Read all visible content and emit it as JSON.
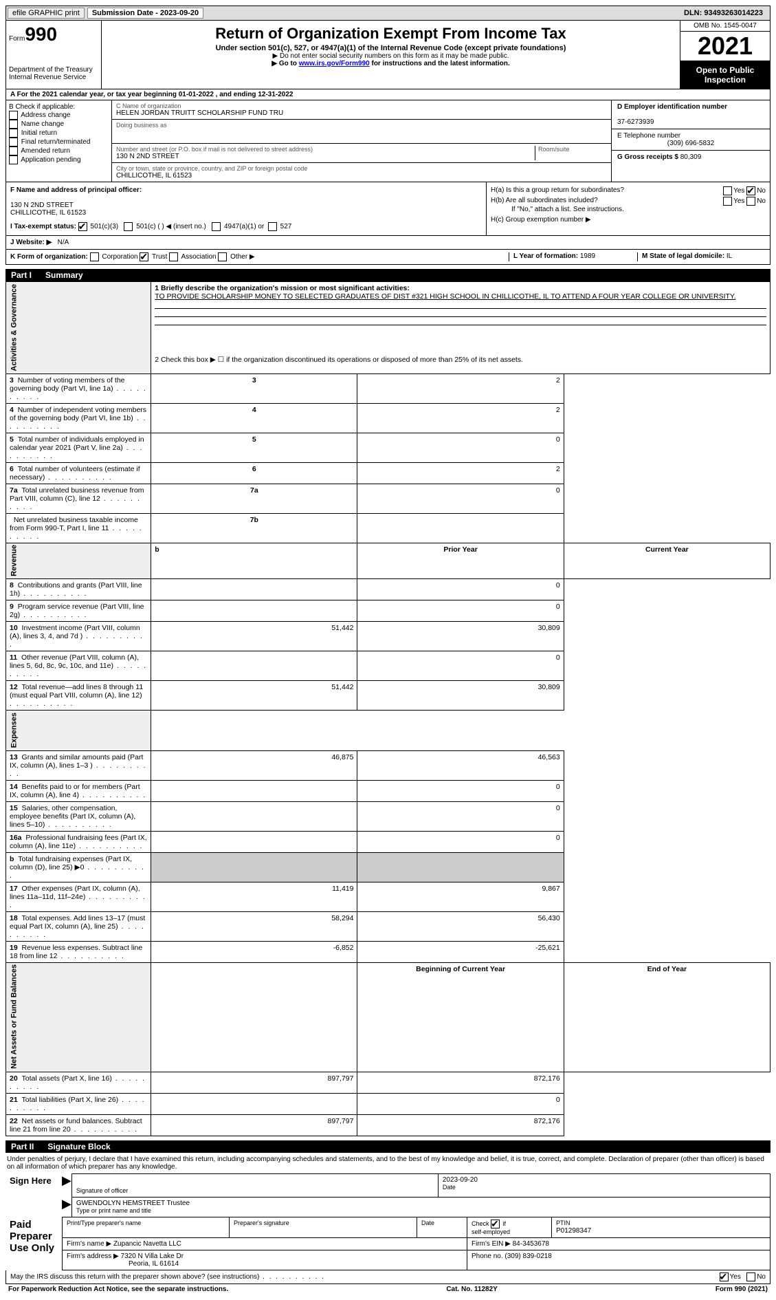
{
  "topbar": {
    "efile": "efile GRAPHIC print",
    "submission_label": "Submission Date - 2023-09-20",
    "dln": "DLN: 93493263014223"
  },
  "header": {
    "form_prefix": "Form",
    "form_number": "990",
    "dept": "Department of the Treasury",
    "irs": "Internal Revenue Service",
    "title": "Return of Organization Exempt From Income Tax",
    "subtitle": "Under section 501(c), 527, or 4947(a)(1) of the Internal Revenue Code (except private foundations)",
    "note1": "▶ Do not enter social security numbers on this form as it may be made public.",
    "note2_prefix": "▶ Go to ",
    "note2_link": "www.irs.gov/Form990",
    "note2_suffix": " for instructions and the latest information.",
    "omb": "OMB No. 1545-0047",
    "year": "2021",
    "open": "Open to Public Inspection"
  },
  "row_a": "A For the 2021 calendar year, or tax year beginning 01-01-2022   , and ending 12-31-2022",
  "col_b": {
    "label": "B Check if applicable:",
    "items": [
      "Address change",
      "Name change",
      "Initial return",
      "Final return/terminated",
      "Amended return",
      "Application pending"
    ]
  },
  "col_c": {
    "name_label": "C Name of organization",
    "name": "HELEN JORDAN TRUITT SCHOLARSHIP FUND TRU",
    "dba_label": "Doing business as",
    "addr_label": "Number and street (or P.O. box if mail is not delivered to street address)",
    "room_label": "Room/suite",
    "addr": "130 N 2ND STREET",
    "city_label": "City or town, state or province, country, and ZIP or foreign postal code",
    "city": "CHILLICOTHE, IL  61523"
  },
  "col_d": {
    "ein_label": "D Employer identification number",
    "ein": "37-6273939",
    "phone_label": "E Telephone number",
    "phone": "(309) 696-5832",
    "gross_label": "G Gross receipts $",
    "gross": "80,309"
  },
  "col_f": {
    "label": "F  Name and address of principal officer:",
    "addr1": "130 N 2ND STREET",
    "addr2": "CHILLICOTHE, IL  61523"
  },
  "col_h": {
    "ha": "H(a)  Is this a group return for subordinates?",
    "hb": "H(b)  Are all subordinates included?",
    "hb_note": "If \"No,\" attach a list. See instructions.",
    "hc": "H(c)  Group exemption number ▶"
  },
  "tax_status": {
    "label_i": "I  Tax-exempt status:",
    "opt1": "501(c)(3)",
    "opt2": "501(c) (  ) ◀ (insert no.)",
    "opt3": "4947(a)(1) or",
    "opt4": "527"
  },
  "row_j": {
    "label": "J  Website: ▶",
    "value": "N/A"
  },
  "row_k": {
    "label": "K Form of organization:",
    "opts": [
      "Corporation",
      "Trust",
      "Association",
      "Other ▶"
    ],
    "year_label": "L Year of formation:",
    "year_val": "1989",
    "state_label": "M State of legal domicile:",
    "state_val": "IL"
  },
  "part1": {
    "header_num": "Part I",
    "header_title": "Summary",
    "line1_label": "1   Briefly describe the organization's mission or most significant activities:",
    "line1_text": "TO PROVIDE SCHOLARSHIP MONEY TO SELECTED GRADUATES OF DIST #321 HIGH SCHOOL IN CHILLICOTHE, IL TO ATTEND A FOUR YEAR COLLEGE OR UNIVERSITY.",
    "line2": "2   Check this box ▶ ☐  if the organization discontinued its operations or disposed of more than 25% of its net assets.",
    "sidebar_activities": "Activities & Governance",
    "sidebar_revenue": "Revenue",
    "sidebar_expenses": "Expenses",
    "sidebar_net": "Net Assets or Fund Balances",
    "rows_gov": [
      {
        "n": "3",
        "t": "Number of voting members of the governing body (Part VI, line 1a)",
        "box": "3",
        "v": "2"
      },
      {
        "n": "4",
        "t": "Number of independent voting members of the governing body (Part VI, line 1b)",
        "box": "4",
        "v": "2"
      },
      {
        "n": "5",
        "t": "Total number of individuals employed in calendar year 2021 (Part V, line 2a)",
        "box": "5",
        "v": "0"
      },
      {
        "n": "6",
        "t": "Total number of volunteers (estimate if necessary)",
        "box": "6",
        "v": "2"
      },
      {
        "n": "7a",
        "t": "Total unrelated business revenue from Part VIII, column (C), line 12",
        "box": "7a",
        "v": "0"
      },
      {
        "n": "",
        "t": "Net unrelated business taxable income from Form 990-T, Part I, line 11",
        "box": "7b",
        "v": ""
      }
    ],
    "prior_label": "Prior Year",
    "current_label": "Current Year",
    "rows_rev": [
      {
        "n": "8",
        "t": "Contributions and grants (Part VIII, line 1h)",
        "p": "",
        "c": "0"
      },
      {
        "n": "9",
        "t": "Program service revenue (Part VIII, line 2g)",
        "p": "",
        "c": "0"
      },
      {
        "n": "10",
        "t": "Investment income (Part VIII, column (A), lines 3, 4, and 7d )",
        "p": "51,442",
        "c": "30,809"
      },
      {
        "n": "11",
        "t": "Other revenue (Part VIII, column (A), lines 5, 6d, 8c, 9c, 10c, and 11e)",
        "p": "",
        "c": "0"
      },
      {
        "n": "12",
        "t": "Total revenue—add lines 8 through 11 (must equal Part VIII, column (A), line 12)",
        "p": "51,442",
        "c": "30,809"
      }
    ],
    "rows_exp": [
      {
        "n": "13",
        "t": "Grants and similar amounts paid (Part IX, column (A), lines 1–3 )",
        "p": "46,875",
        "c": "46,563"
      },
      {
        "n": "14",
        "t": "Benefits paid to or for members (Part IX, column (A), line 4)",
        "p": "",
        "c": "0"
      },
      {
        "n": "15",
        "t": "Salaries, other compensation, employee benefits (Part IX, column (A), lines 5–10)",
        "p": "",
        "c": "0"
      },
      {
        "n": "16a",
        "t": "Professional fundraising fees (Part IX, column (A), line 11e)",
        "p": "",
        "c": "0"
      },
      {
        "n": "b",
        "t": "Total fundraising expenses (Part IX, column (D), line 25) ▶0",
        "p": "shaded",
        "c": "shaded"
      },
      {
        "n": "17",
        "t": "Other expenses (Part IX, column (A), lines 11a–11d, 11f–24e)",
        "p": "11,419",
        "c": "9,867"
      },
      {
        "n": "18",
        "t": "Total expenses. Add lines 13–17 (must equal Part IX, column (A), line 25)",
        "p": "58,294",
        "c": "56,430"
      },
      {
        "n": "19",
        "t": "Revenue less expenses. Subtract line 18 from line 12",
        "p": "-6,852",
        "c": "-25,621"
      }
    ],
    "begin_label": "Beginning of Current Year",
    "end_label": "End of Year",
    "rows_net": [
      {
        "n": "20",
        "t": "Total assets (Part X, line 16)",
        "p": "897,797",
        "c": "872,176"
      },
      {
        "n": "21",
        "t": "Total liabilities (Part X, line 26)",
        "p": "",
        "c": "0"
      },
      {
        "n": "22",
        "t": "Net assets or fund balances. Subtract line 21 from line 20",
        "p": "897,797",
        "c": "872,176"
      }
    ]
  },
  "part2": {
    "header_num": "Part II",
    "header_title": "Signature Block",
    "declaration": "Under penalties of perjury, I declare that I have examined this return, including accompanying schedules and statements, and to the best of my knowledge and belief, it is true, correct, and complete. Declaration of preparer (other than officer) is based on all information of which preparer has any knowledge.",
    "sign_here": "Sign Here",
    "sig_officer": "Signature of officer",
    "sig_date": "2023-09-20",
    "date_label": "Date",
    "officer_name": "GWENDOLYN HEMSTREET Trustee",
    "type_name": "Type or print name and title",
    "paid_prep": "Paid Preparer Use Only",
    "print_prep": "Print/Type preparer's name",
    "prep_sig": "Preparer's signature",
    "check_if": "Check ☑ if self-employed",
    "ptin_label": "PTIN",
    "ptin": "P01298347",
    "firm_name_label": "Firm's name    ▶",
    "firm_name": "Zupancic Navetta LLC",
    "firm_ein_label": "Firm's EIN ▶",
    "firm_ein": "84-3453678",
    "firm_addr_label": "Firm's address ▶",
    "firm_addr1": "7320 N Villa Lake Dr",
    "firm_addr2": "Peoria, IL  61614",
    "phone_label": "Phone no.",
    "phone": "(309) 839-0218",
    "may_irs": "May the IRS discuss this return with the preparer shown above? (see instructions)",
    "yes": "Yes",
    "no": "No"
  },
  "footer": {
    "pra": "For Paperwork Reduction Act Notice, see the separate instructions.",
    "cat": "Cat. No. 11282Y",
    "form": "Form 990 (2021)"
  }
}
